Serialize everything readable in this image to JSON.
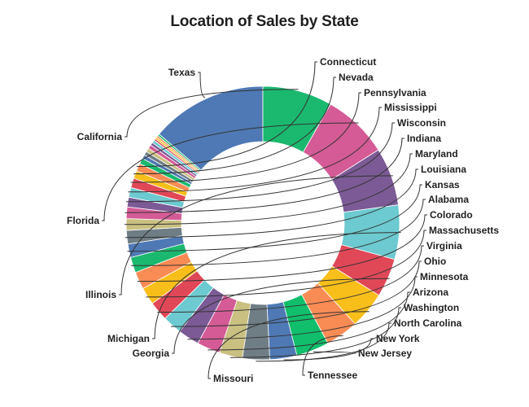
{
  "chart_data": {
    "type": "pie",
    "variant": "donut",
    "title": "Location of Sales by State",
    "slices": [
      {
        "label": "Texas",
        "value": 60,
        "color": "#4E79B4"
      },
      {
        "label": "California",
        "value": 36,
        "color": "#1BB96F"
      },
      {
        "label": "Florida",
        "value": 34,
        "color": "#D45B96"
      },
      {
        "label": "Illinois",
        "value": 30,
        "color": "#7B5A95"
      },
      {
        "label": "Michigan",
        "value": 28,
        "color": "#6CCAD0"
      },
      {
        "label": "Georgia",
        "value": 20,
        "color": "#E04858"
      },
      {
        "label": "Missouri",
        "value": 19,
        "color": "#F8BE1A"
      },
      {
        "label": "Tennessee",
        "value": 17,
        "color": "#F98B55"
      },
      {
        "label": "New Jersey",
        "value": 17,
        "color": "#11BE6B"
      },
      {
        "label": "New York",
        "value": 14,
        "color": "#4E79B4"
      },
      {
        "label": "North Carolina",
        "value": 14,
        "color": "#6F7D85"
      },
      {
        "label": "Washington",
        "value": 12,
        "color": "#C9C081"
      },
      {
        "label": "Arizona",
        "value": 12,
        "color": "#D45B96"
      },
      {
        "label": "Minnesota",
        "value": 11,
        "color": "#7B5A95"
      },
      {
        "label": "Ohio",
        "value": 10,
        "color": "#6CCAD0"
      },
      {
        "label": "Virginia",
        "value": 10,
        "color": "#E04858"
      },
      {
        "label": "Massachusetts",
        "value": 9,
        "color": "#F8BE1A"
      },
      {
        "label": "Colorado",
        "value": 9,
        "color": "#F98B55"
      },
      {
        "label": "Alabama",
        "value": 8,
        "color": "#1BB96F"
      },
      {
        "label": "Kansas",
        "value": 7,
        "color": "#4E79B4"
      },
      {
        "label": "Louisiana",
        "value": 7,
        "color": "#6F7D85"
      },
      {
        "label": "Maryland",
        "value": 6,
        "color": "#C9C081"
      },
      {
        "label": "Indiana",
        "value": 6,
        "color": "#D45B96"
      },
      {
        "label": "Wisconsin",
        "value": 5,
        "color": "#7B5A95"
      },
      {
        "label": "Mississippi",
        "value": 5,
        "color": "#6CCAD0"
      },
      {
        "label": "Pennsylvania",
        "value": 5,
        "color": "#E04858"
      },
      {
        "label": "Nevada",
        "value": 4,
        "color": "#F8BE1A"
      },
      {
        "label": "Connecticut",
        "value": 4,
        "color": "#F98B55"
      },
      {
        "label": "",
        "value": 3,
        "color": "#1BB96F"
      },
      {
        "label": "",
        "value": 2,
        "color": "#4E79B4"
      },
      {
        "label": "",
        "value": 2,
        "color": "#6F7D85"
      },
      {
        "label": "",
        "value": 2,
        "color": "#C9C081"
      },
      {
        "label": "",
        "value": 2,
        "color": "#D45B96"
      },
      {
        "label": "",
        "value": 1.5,
        "color": "#7B5A95"
      },
      {
        "label": "",
        "value": 1.5,
        "color": "#6CCAD0"
      },
      {
        "label": "",
        "value": 1,
        "color": "#E04858"
      },
      {
        "label": "",
        "value": 1,
        "color": "#F8BE1A"
      },
      {
        "label": "",
        "value": 1,
        "color": "#F98B55"
      },
      {
        "label": "",
        "value": 1,
        "color": "#1BB96F"
      }
    ],
    "legend": "none"
  }
}
